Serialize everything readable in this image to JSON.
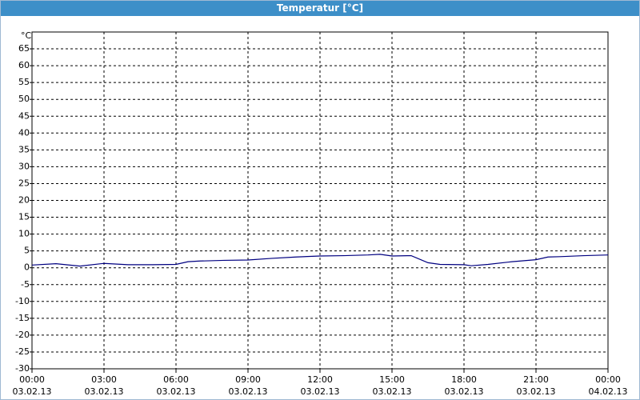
{
  "chart_data": {
    "type": "line",
    "title": "Temperatur [°C]",
    "y_label": "°C",
    "xlim": [
      0,
      24
    ],
    "ylim": [
      -30,
      70
    ],
    "yticks": [
      -30,
      -25,
      -20,
      -15,
      -10,
      -5,
      0,
      5,
      10,
      15,
      20,
      25,
      30,
      35,
      40,
      45,
      50,
      55,
      60,
      65
    ],
    "xticks": [
      {
        "value": 0,
        "label": "00:00"
      },
      {
        "value": 3,
        "label": "03:00"
      },
      {
        "value": 6,
        "label": "06:00"
      },
      {
        "value": 9,
        "label": "09:00"
      },
      {
        "value": 12,
        "label": "12:00"
      },
      {
        "value": 15,
        "label": "15:00"
      },
      {
        "value": 18,
        "label": "18:00"
      },
      {
        "value": 21,
        "label": "21:00"
      },
      {
        "value": 24,
        "label": "00:00"
      }
    ],
    "xtick_dates": [
      "03.02.13",
      "03.02.13",
      "03.02.13",
      "03.02.13",
      "03.02.13",
      "03.02.13",
      "03.02.13",
      "03.02.13",
      "04.02.13"
    ],
    "grid": true,
    "series": [
      {
        "color": "#000080",
        "x": [
          0,
          1,
          2,
          3,
          4,
          5,
          6,
          6.5,
          7,
          8,
          9,
          10,
          11,
          12,
          13,
          14,
          14.5,
          15,
          15.8,
          16.5,
          17,
          18,
          18.3,
          19,
          20,
          21,
          21.5,
          22,
          23,
          24
        ],
        "values": [
          0.8,
          1.2,
          0.5,
          1.3,
          0.9,
          0.9,
          1.0,
          1.8,
          2.0,
          2.2,
          2.3,
          2.8,
          3.2,
          3.5,
          3.6,
          3.8,
          4.0,
          3.5,
          3.6,
          1.5,
          1.0,
          0.9,
          0.6,
          1.0,
          1.8,
          2.4,
          3.2,
          3.3,
          3.6,
          3.8
        ]
      }
    ]
  }
}
